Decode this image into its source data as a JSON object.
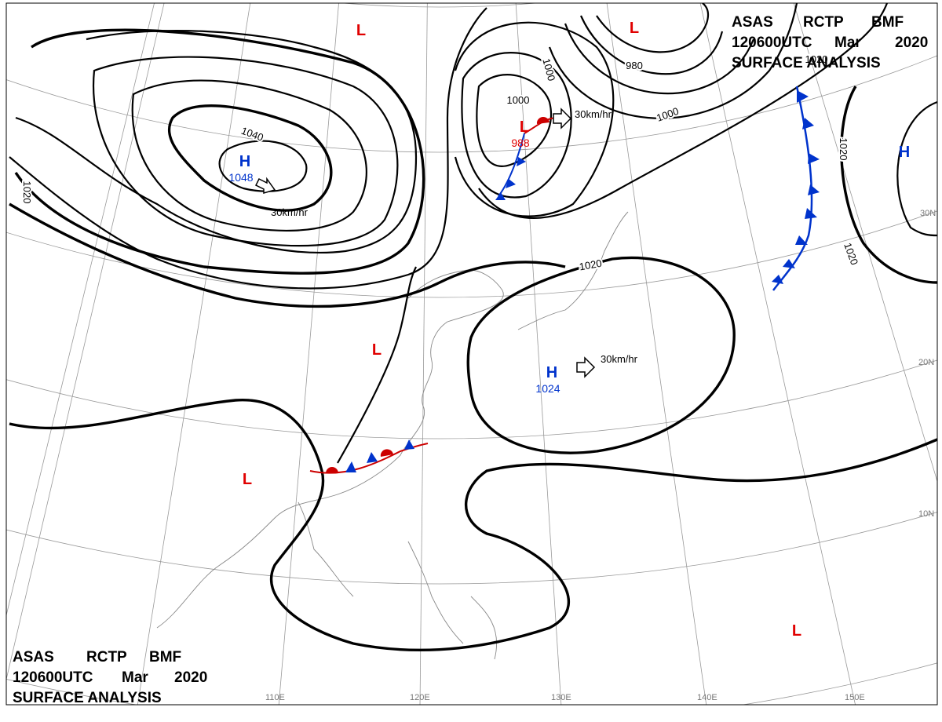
{
  "header": {
    "agency": "ASAS",
    "station": "RCTP",
    "code": "BMF",
    "time": "120600UTC",
    "month": "Mar",
    "year": "2020",
    "product": "SURFACE ANALYSIS"
  },
  "centers": [
    {
      "symbol": "H",
      "value": 1048
    },
    {
      "symbol": "H",
      "value": 1024
    },
    {
      "symbol": "H"
    },
    {
      "symbol": "L",
      "value": 988
    },
    {
      "symbol": "L"
    },
    {
      "symbol": "L"
    },
    {
      "symbol": "L"
    },
    {
      "symbol": "L"
    },
    {
      "symbol": "L"
    }
  ],
  "isobar_labels": [
    1020,
    1040,
    1020,
    1000,
    1000,
    980,
    1000,
    1020,
    1020,
    1020
  ],
  "motions": [
    "30km/hr",
    "30km/hr",
    "30km/hr"
  ],
  "latitudes": [
    "30N",
    "20N",
    "10N"
  ],
  "longitudes": [
    "110E",
    "120E",
    "130E",
    "140E",
    "150E"
  ]
}
